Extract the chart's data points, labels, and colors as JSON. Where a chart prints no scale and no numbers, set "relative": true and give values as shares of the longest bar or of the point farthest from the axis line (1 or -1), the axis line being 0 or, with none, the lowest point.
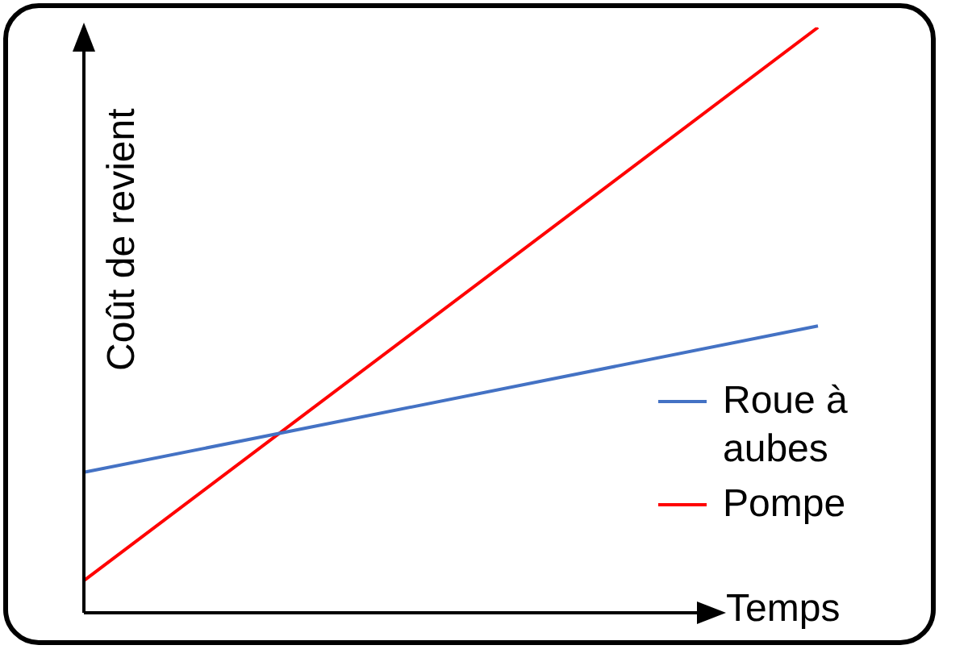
{
  "chart_data": {
    "type": "line",
    "xlabel": "Temps",
    "ylabel": "Coût de revient",
    "relative": true,
    "categories": [
      null,
      null
    ],
    "legend": "right",
    "marker": "none",
    "line_style": "solid",
    "series": [
      {
        "name": "Roue à aubes",
        "color": "#4472c4",
        "values": [
          0.24,
          0.49
        ]
      },
      {
        "name": "Pompe",
        "color": "#ff0000",
        "values": [
          0.055,
          1
        ]
      }
    ]
  }
}
